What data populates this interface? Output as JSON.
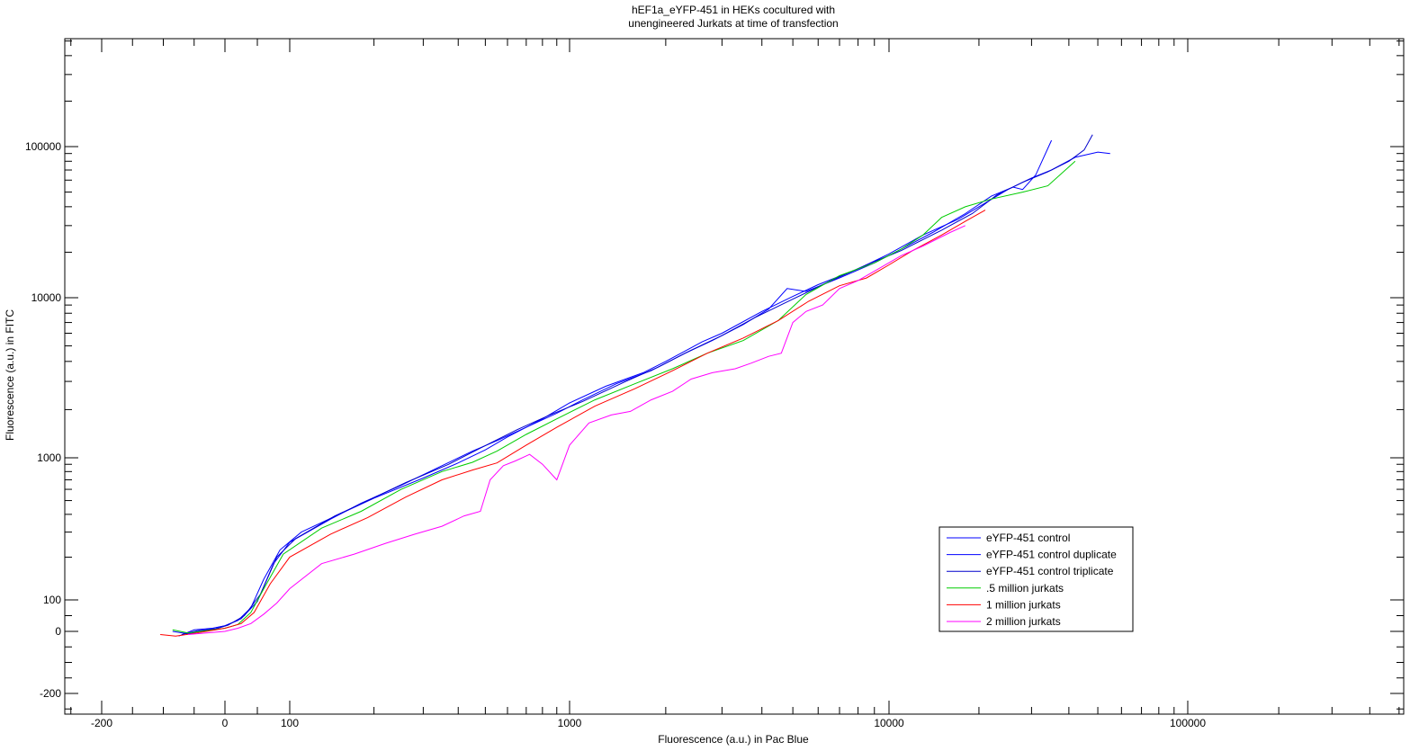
{
  "chart_data": {
    "type": "line",
    "title_lines": [
      "hEF1a_eYFP-451 in HEKs cocultured with",
      "unengineered Jurkats at time of transfection"
    ],
    "xlabel": "Fluorescence (a.u.) in Pac Blue",
    "ylabel": "Fluorescence (a.u.) in FITC",
    "x_scale": "biexponential (linear near 0, log above 100)",
    "y_scale": "biexponential (linear near 0, log above 100)",
    "x_tick_labels": [
      "-200",
      "0",
      "100",
      "1000",
      "10000",
      "100000"
    ],
    "x_tick_values": [
      -200,
      0,
      100,
      1000,
      10000,
      100000
    ],
    "y_tick_labels": [
      "-200",
      "0",
      "100",
      "1000",
      "10000",
      "100000"
    ],
    "y_tick_values": [
      -200,
      0,
      100,
      1000,
      10000,
      100000
    ],
    "xlim": [
      -300,
      1000000
    ],
    "ylim": [
      -300,
      1000000
    ],
    "legend_position": "bottom-right",
    "grid": false,
    "series": [
      {
        "name": "eYFP-451 control",
        "color": "#0000ff",
        "points": [
          [
            -85,
            0
          ],
          [
            -60,
            -8
          ],
          [
            -30,
            5
          ],
          [
            0,
            18
          ],
          [
            20,
            35
          ],
          [
            40,
            75
          ],
          [
            60,
            140
          ],
          [
            85,
            225
          ],
          [
            110,
            300
          ],
          [
            150,
            400
          ],
          [
            200,
            520
          ],
          [
            300,
            720
          ],
          [
            400,
            920
          ],
          [
            500,
            1120
          ],
          [
            600,
            1350
          ],
          [
            800,
            1750
          ],
          [
            1000,
            2200
          ],
          [
            1300,
            2800
          ],
          [
            1700,
            3400
          ],
          [
            2000,
            4000
          ],
          [
            2600,
            5300
          ],
          [
            3000,
            6000
          ],
          [
            4000,
            8200
          ],
          [
            5000,
            10200
          ],
          [
            6000,
            12200
          ],
          [
            8000,
            15500
          ],
          [
            10000,
            19500
          ],
          [
            13000,
            26000
          ],
          [
            17000,
            33000
          ],
          [
            20000,
            40000
          ],
          [
            25000,
            52000
          ],
          [
            30000,
            62000
          ],
          [
            35000,
            70000
          ],
          [
            42000,
            85000
          ],
          [
            50000,
            92000
          ],
          [
            55000,
            90000
          ]
        ]
      },
      {
        "name": "eYFP-451 control duplicate",
        "color": "#0000ff",
        "points": [
          [
            -75,
            -15
          ],
          [
            -50,
            5
          ],
          [
            -20,
            10
          ],
          [
            0,
            18
          ],
          [
            25,
            40
          ],
          [
            50,
            95
          ],
          [
            75,
            180
          ],
          [
            100,
            255
          ],
          [
            140,
            370
          ],
          [
            180,
            480
          ],
          [
            250,
            640
          ],
          [
            350,
            880
          ],
          [
            450,
            1100
          ],
          [
            550,
            1280
          ],
          [
            700,
            1550
          ],
          [
            900,
            1900
          ],
          [
            1100,
            2300
          ],
          [
            1400,
            2900
          ],
          [
            1800,
            3500
          ],
          [
            2300,
            4500
          ],
          [
            2800,
            5400
          ],
          [
            3500,
            6800
          ],
          [
            4200,
            8500
          ],
          [
            4800,
            11500
          ],
          [
            5500,
            11000
          ],
          [
            7000,
            13500
          ],
          [
            9000,
            17000
          ],
          [
            11000,
            21000
          ],
          [
            14000,
            27000
          ],
          [
            18000,
            36000
          ],
          [
            22000,
            47000
          ],
          [
            26000,
            54000
          ],
          [
            28000,
            52000
          ],
          [
            31000,
            65000
          ],
          [
            35000,
            110000
          ]
        ]
      },
      {
        "name": "eYFP-451 control triplicate",
        "color": "#0000cc",
        "points": [
          [
            -70,
            -10
          ],
          [
            -45,
            2
          ],
          [
            -15,
            8
          ],
          [
            5,
            20
          ],
          [
            30,
            50
          ],
          [
            55,
            110
          ],
          [
            80,
            200
          ],
          [
            105,
            270
          ],
          [
            145,
            390
          ],
          [
            190,
            500
          ],
          [
            260,
            670
          ],
          [
            370,
            900
          ],
          [
            480,
            1150
          ],
          [
            650,
            1500
          ],
          [
            850,
            1850
          ],
          [
            1100,
            2250
          ],
          [
            1500,
            3000
          ],
          [
            1900,
            3700
          ],
          [
            2400,
            4700
          ],
          [
            3000,
            5800
          ],
          [
            3800,
            7500
          ],
          [
            5000,
            9800
          ],
          [
            6500,
            12800
          ],
          [
            8500,
            16500
          ],
          [
            11000,
            20500
          ],
          [
            15000,
            28000
          ],
          [
            19000,
            36000
          ],
          [
            23000,
            48000
          ],
          [
            28000,
            58000
          ],
          [
            34000,
            68000
          ],
          [
            40000,
            80000
          ],
          [
            45000,
            95000
          ],
          [
            48000,
            120000
          ]
        ]
      },
      {
        "name": ".5 million jurkats",
        "color": "#00cc00",
        "points": [
          [
            -85,
            5
          ],
          [
            -60,
            -5
          ],
          [
            -30,
            2
          ],
          [
            0,
            10
          ],
          [
            20,
            22
          ],
          [
            40,
            60
          ],
          [
            60,
            120
          ],
          [
            90,
            210
          ],
          [
            130,
            320
          ],
          [
            180,
            420
          ],
          [
            250,
            600
          ],
          [
            350,
            800
          ],
          [
            450,
            930
          ],
          [
            550,
            1100
          ],
          [
            700,
            1400
          ],
          [
            900,
            1750
          ],
          [
            1200,
            2300
          ],
          [
            1600,
            2900
          ],
          [
            2100,
            3600
          ],
          [
            2700,
            4500
          ],
          [
            3500,
            5400
          ],
          [
            4500,
            7200
          ],
          [
            5500,
            10500
          ],
          [
            7000,
            14000
          ],
          [
            9000,
            17000
          ],
          [
            11000,
            21000
          ],
          [
            13000,
            26000
          ],
          [
            15000,
            34000
          ],
          [
            18000,
            40000
          ],
          [
            22000,
            45000
          ],
          [
            28000,
            50000
          ],
          [
            34000,
            55000
          ],
          [
            42000,
            80000
          ]
        ]
      },
      {
        "name": "1 million jurkats",
        "color": "#ff0000",
        "points": [
          [
            -105,
            -10
          ],
          [
            -80,
            -15
          ],
          [
            -55,
            -8
          ],
          [
            -30,
            0
          ],
          [
            0,
            10
          ],
          [
            25,
            25
          ],
          [
            45,
            60
          ],
          [
            70,
            130
          ],
          [
            100,
            200
          ],
          [
            140,
            290
          ],
          [
            190,
            380
          ],
          [
            260,
            530
          ],
          [
            350,
            700
          ],
          [
            450,
            820
          ],
          [
            550,
            920
          ],
          [
            700,
            1200
          ],
          [
            900,
            1550
          ],
          [
            1200,
            2100
          ],
          [
            1600,
            2700
          ],
          [
            2100,
            3500
          ],
          [
            2700,
            4500
          ],
          [
            3500,
            5600
          ],
          [
            4500,
            7200
          ],
          [
            5600,
            9500
          ],
          [
            7000,
            12000
          ],
          [
            8500,
            13500
          ],
          [
            10000,
            16500
          ],
          [
            12000,
            20500
          ],
          [
            15000,
            26000
          ],
          [
            18000,
            32000
          ],
          [
            21000,
            38000
          ]
        ]
      },
      {
        "name": "2 million jurkats",
        "color": "#ff00ff",
        "points": [
          [
            -60,
            -10
          ],
          [
            -30,
            -5
          ],
          [
            0,
            0
          ],
          [
            20,
            10
          ],
          [
            40,
            25
          ],
          [
            60,
            55
          ],
          [
            80,
            90
          ],
          [
            100,
            120
          ],
          [
            130,
            180
          ],
          [
            170,
            210
          ],
          [
            220,
            250
          ],
          [
            280,
            290
          ],
          [
            350,
            330
          ],
          [
            420,
            390
          ],
          [
            480,
            420
          ],
          [
            520,
            700
          ],
          [
            580,
            880
          ],
          [
            640,
            950
          ],
          [
            720,
            1050
          ],
          [
            800,
            900
          ],
          [
            900,
            700
          ],
          [
            1000,
            1200
          ],
          [
            1150,
            1650
          ],
          [
            1350,
            1850
          ],
          [
            1550,
            1950
          ],
          [
            1800,
            2300
          ],
          [
            2100,
            2600
          ],
          [
            2400,
            3100
          ],
          [
            2800,
            3400
          ],
          [
            3300,
            3600
          ],
          [
            3700,
            3900
          ],
          [
            4200,
            4300
          ],
          [
            4600,
            4500
          ],
          [
            5000,
            7000
          ],
          [
            5500,
            8200
          ],
          [
            6200,
            9000
          ],
          [
            7000,
            11500
          ],
          [
            8000,
            13000
          ],
          [
            9500,
            16000
          ],
          [
            11000,
            19000
          ],
          [
            13000,
            22000
          ],
          [
            16000,
            27000
          ],
          [
            18000,
            30000
          ]
        ]
      }
    ]
  }
}
